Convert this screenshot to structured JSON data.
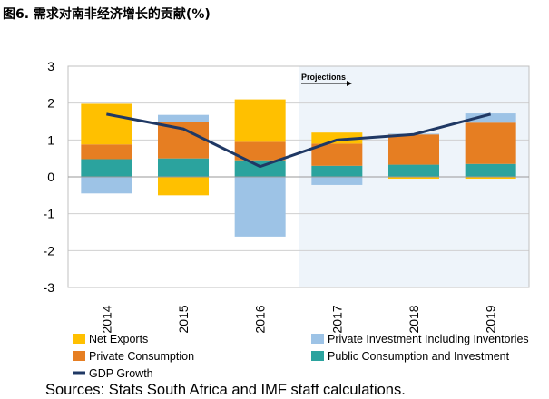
{
  "figure_title": "图6. 需求对南非经济增长的贡献(%)",
  "source_note": "Sources: Stats South Africa and IMF staff calculations.",
  "colors": {
    "net_exports": "#FFC000",
    "private_consumption": "#E67E22",
    "public_consumption": "#2BA39E",
    "private_investment": "#9DC3E6",
    "gdp_line": "#1F3864",
    "projection_shade": "#EEF4FA"
  },
  "chart_data": {
    "type": "bar",
    "stacked": true,
    "title": "",
    "xlabel": "",
    "ylabel": "",
    "ylim": [
      -3,
      3
    ],
    "yticks": [
      "3",
      "2",
      "1",
      "0",
      "-1",
      "-2",
      "-3"
    ],
    "grid": true,
    "legend_position": "bottom",
    "annotation": "Projections",
    "projection_start": "2017",
    "categories": [
      "2014",
      "2015",
      "2016",
      "2017",
      "2018",
      "2019"
    ],
    "series": [
      {
        "name": "Public Consumption and Investment",
        "color_key": "public_consumption",
        "values": [
          0.48,
          0.5,
          0.45,
          0.3,
          0.33,
          0.35
        ]
      },
      {
        "name": "Private Consumption",
        "color_key": "private_consumption",
        "values": [
          0.4,
          1.0,
          0.5,
          0.6,
          0.82,
          1.12
        ]
      },
      {
        "name": "Net Exports",
        "color_key": "net_exports",
        "values": [
          1.1,
          -0.5,
          1.15,
          0.3,
          -0.05,
          -0.05
        ]
      },
      {
        "name": "Private Investment Including Inventories",
        "color_key": "private_investment",
        "values": [
          -0.45,
          0.18,
          -1.62,
          -0.22,
          0.02,
          0.25
        ]
      }
    ],
    "line_series": {
      "name": "GDP Growth",
      "color_key": "gdp_line",
      "values": [
        1.7,
        1.3,
        0.28,
        1.0,
        1.15,
        1.7
      ]
    },
    "legend": [
      {
        "label": "Net Exports",
        "color_key": "net_exports",
        "kind": "box"
      },
      {
        "label": "Private Investment Including Inventories",
        "color_key": "private_investment",
        "kind": "box"
      },
      {
        "label": "Private Consumption",
        "color_key": "private_consumption",
        "kind": "box"
      },
      {
        "label": "Public Consumption and Investment",
        "color_key": "public_consumption",
        "kind": "box"
      },
      {
        "label": "GDP Growth",
        "color_key": "gdp_line",
        "kind": "line"
      }
    ]
  }
}
